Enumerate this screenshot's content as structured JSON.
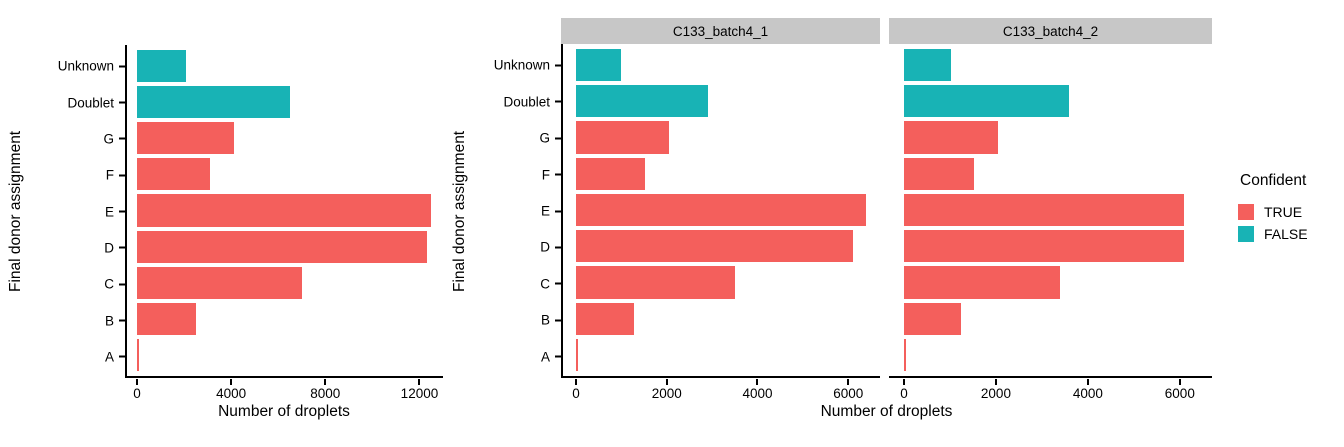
{
  "figure": {
    "background": "#FFFFFF",
    "colors": {
      "confident_true": "#F45F5C",
      "confident_false": "#18B3B5",
      "strip_bg": "#C7C7C7",
      "axis": "#000000"
    },
    "legend": {
      "title": "Confident",
      "position": "right",
      "items": [
        {
          "label": "TRUE",
          "color_key": "confident_true"
        },
        {
          "label": "FALSE",
          "color_key": "confident_false"
        }
      ]
    }
  },
  "chart_data": [
    {
      "type": "bar",
      "orientation": "horizontal",
      "title": "",
      "xlabel": "Number of droplets",
      "ylabel": "Final donor assignment",
      "categories": [
        "Unknown",
        "Doublet",
        "G",
        "F",
        "E",
        "D",
        "C",
        "B",
        "A"
      ],
      "values": [
        2100,
        6500,
        4100,
        3100,
        12500,
        12300,
        7000,
        2500,
        100
      ],
      "confident": [
        "FALSE",
        "FALSE",
        "TRUE",
        "TRUE",
        "TRUE",
        "TRUE",
        "TRUE",
        "TRUE",
        "TRUE"
      ],
      "x_ticks": [
        0,
        4000,
        8000,
        12000
      ],
      "xlim": [
        0,
        13000
      ],
      "grid": false,
      "legend_position": "none"
    },
    {
      "type": "bar",
      "orientation": "horizontal",
      "facet": "C133_batch4_1",
      "xlabel": "Number of droplets",
      "ylabel": "Final donor assignment",
      "categories": [
        "Unknown",
        "Doublet",
        "G",
        "F",
        "E",
        "D",
        "C",
        "B",
        "A"
      ],
      "values": [
        1000,
        2900,
        2050,
        1520,
        6400,
        6100,
        3500,
        1270,
        50
      ],
      "confident": [
        "FALSE",
        "FALSE",
        "TRUE",
        "TRUE",
        "TRUE",
        "TRUE",
        "TRUE",
        "TRUE",
        "TRUE"
      ],
      "x_ticks": [
        0,
        2000,
        4000,
        6000
      ],
      "xlim": [
        0,
        6700
      ],
      "grid": false,
      "legend_position": "right"
    },
    {
      "type": "bar",
      "orientation": "horizontal",
      "facet": "C133_batch4_2",
      "xlabel": "Number of droplets",
      "ylabel": "Final donor assignment",
      "categories": [
        "Unknown",
        "Doublet",
        "G",
        "F",
        "E",
        "D",
        "C",
        "B",
        "A"
      ],
      "values": [
        1030,
        3600,
        2050,
        1530,
        6100,
        6100,
        3400,
        1230,
        50
      ],
      "confident": [
        "FALSE",
        "FALSE",
        "TRUE",
        "TRUE",
        "TRUE",
        "TRUE",
        "TRUE",
        "TRUE",
        "TRUE"
      ],
      "x_ticks": [
        0,
        2000,
        4000,
        6000
      ],
      "xlim": [
        0,
        6700
      ],
      "grid": false,
      "legend_position": "right"
    }
  ]
}
